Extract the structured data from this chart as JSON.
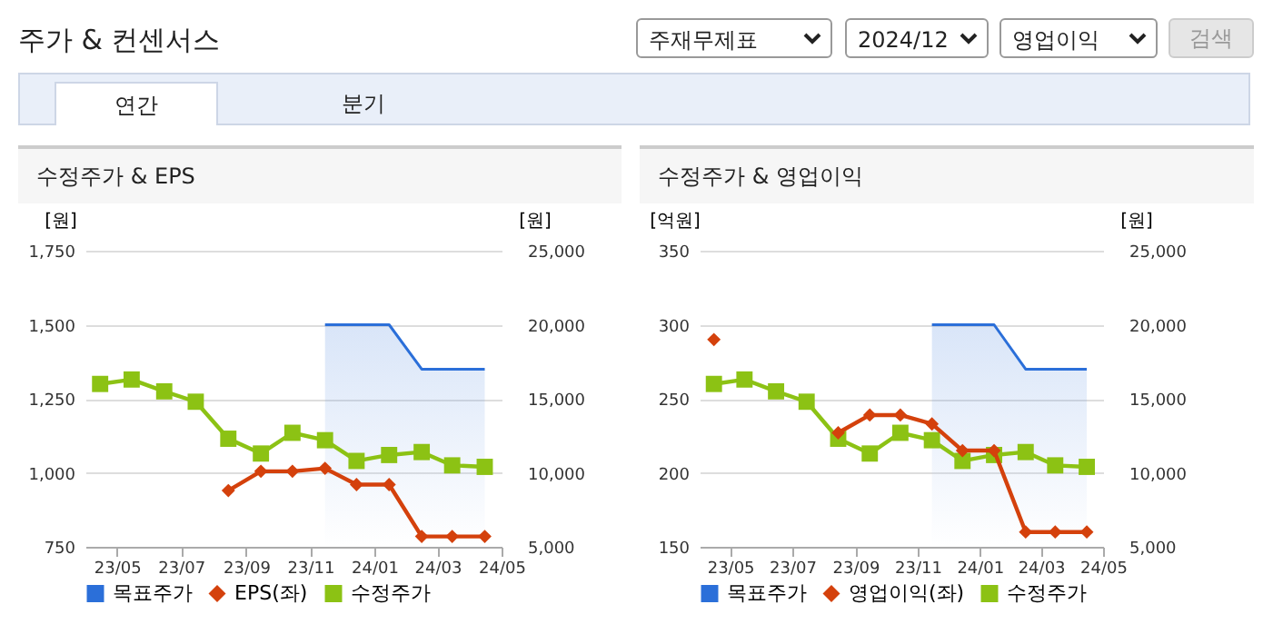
{
  "chart_data": [
    {
      "type": "other",
      "title": "주가 & 컨센서스",
      "annotations": [
        "주재무제표",
        "2024/12",
        "영업이익",
        "검색",
        "연간",
        "분기"
      ]
    },
    {
      "type": "line",
      "title": "수정주가 & EPS",
      "x": [
        "2023-04-15",
        "2023-05-15",
        "2023-06-15",
        "2023-07-15",
        "2023-08-15",
        "2023-09-15",
        "2023-10-15",
        "2023-11-15",
        "2023-12-15",
        "2024-01-15",
        "2024-02-15",
        "2024-03-15",
        "2024-04-15"
      ],
      "xlim": [
        "2023-04-01",
        "2024-05-01"
      ],
      "xticks": [
        {
          "value": "2023-05-01",
          "label": "23/05"
        },
        {
          "value": "2023-07-01",
          "label": "23/07"
        },
        {
          "value": "2023-09-01",
          "label": "23/09"
        },
        {
          "value": "2023-11-01",
          "label": "23/11"
        },
        {
          "value": "2024-01-01",
          "label": "24/01"
        },
        {
          "value": "2024-03-01",
          "label": "24/03"
        },
        {
          "value": "2024-05-01",
          "label": "24/05"
        }
      ],
      "ylabel": "[원]",
      "ylim": [
        750,
        1750
      ],
      "yticks": [
        750,
        {
          "value": 1000,
          "label": "1,000"
        },
        {
          "value": 1250,
          "label": "1,250"
        },
        {
          "value": 1500,
          "label": "1,500"
        },
        {
          "value": 1750,
          "label": "1,750"
        }
      ],
      "y2label": "[원]",
      "y2lim": [
        5000,
        25000
      ],
      "y2ticks": [
        {
          "value": 5000,
          "label": "5,000"
        },
        {
          "value": 10000,
          "label": "10,000"
        },
        {
          "value": 15000,
          "label": "15,000"
        },
        {
          "value": 20000,
          "label": "20,000"
        },
        {
          "value": 25000,
          "label": "25,000"
        }
      ],
      "grid": "y",
      "legend": "bottom",
      "series": [
        {
          "name": "목표주가",
          "type": "area",
          "axis": "y2",
          "color": "#2b6fd9",
          "marker": "none",
          "values": [
            null,
            null,
            null,
            null,
            null,
            null,
            null,
            20000,
            20000,
            20000,
            17000,
            17000,
            17000
          ]
        },
        {
          "name": "EPS(좌)",
          "type": "line",
          "color": "#d4410c",
          "marker": "diamond",
          "values": [
            null,
            null,
            null,
            null,
            940,
            1005,
            1005,
            1015,
            960,
            960,
            785,
            785,
            785
          ]
        },
        {
          "name": "수정주가",
          "type": "line",
          "axis": "y2",
          "color": "#8cc214",
          "marker": "square",
          "values": [
            16000,
            16300,
            15500,
            14800,
            12300,
            11300,
            12700,
            12200,
            10800,
            11200,
            11400,
            10500,
            10400
          ]
        }
      ]
    },
    {
      "type": "line",
      "title": "수정주가 & 영업이익",
      "x": [
        "2023-04-15",
        "2023-05-15",
        "2023-06-15",
        "2023-07-15",
        "2023-08-15",
        "2023-09-15",
        "2023-10-15",
        "2023-11-15",
        "2023-12-15",
        "2024-01-15",
        "2024-02-15",
        "2024-03-15",
        "2024-04-15"
      ],
      "xlim": [
        "2023-04-01",
        "2024-05-01"
      ],
      "xticks": [
        {
          "value": "2023-05-01",
          "label": "23/05"
        },
        {
          "value": "2023-07-01",
          "label": "23/07"
        },
        {
          "value": "2023-09-01",
          "label": "23/09"
        },
        {
          "value": "2023-11-01",
          "label": "23/11"
        },
        {
          "value": "2024-01-01",
          "label": "24/01"
        },
        {
          "value": "2024-03-01",
          "label": "24/03"
        },
        {
          "value": "2024-05-01",
          "label": "24/05"
        }
      ],
      "ylabel": "[억원]",
      "ylim": [
        150,
        350
      ],
      "yticks": [
        150,
        200,
        250,
        300,
        350
      ],
      "y2label": "[원]",
      "y2lim": [
        5000,
        25000
      ],
      "y2ticks": [
        {
          "value": 5000,
          "label": "5,000"
        },
        {
          "value": 10000,
          "label": "10,000"
        },
        {
          "value": 15000,
          "label": "15,000"
        },
        {
          "value": 20000,
          "label": "20,000"
        },
        {
          "value": 25000,
          "label": "25,000"
        }
      ],
      "grid": "y",
      "legend": "bottom",
      "series": [
        {
          "name": "목표주가",
          "type": "area",
          "axis": "y2",
          "color": "#2b6fd9",
          "marker": "none",
          "values": [
            null,
            null,
            null,
            null,
            null,
            null,
            null,
            20000,
            20000,
            20000,
            17000,
            17000,
            17000
          ]
        },
        {
          "name": "영업이익(좌)",
          "type": "line",
          "color": "#d4410c",
          "marker": "diamond",
          "values": [
            290,
            null,
            null,
            null,
            227,
            239,
            239,
            233,
            215,
            215,
            160,
            160,
            160
          ]
        },
        {
          "name": "수정주가",
          "type": "line",
          "axis": "y2",
          "color": "#8cc214",
          "marker": "square",
          "values": [
            16000,
            16300,
            15500,
            14800,
            12300,
            11300,
            12700,
            12200,
            10800,
            11200,
            11400,
            10500,
            10400
          ]
        }
      ]
    }
  ]
}
